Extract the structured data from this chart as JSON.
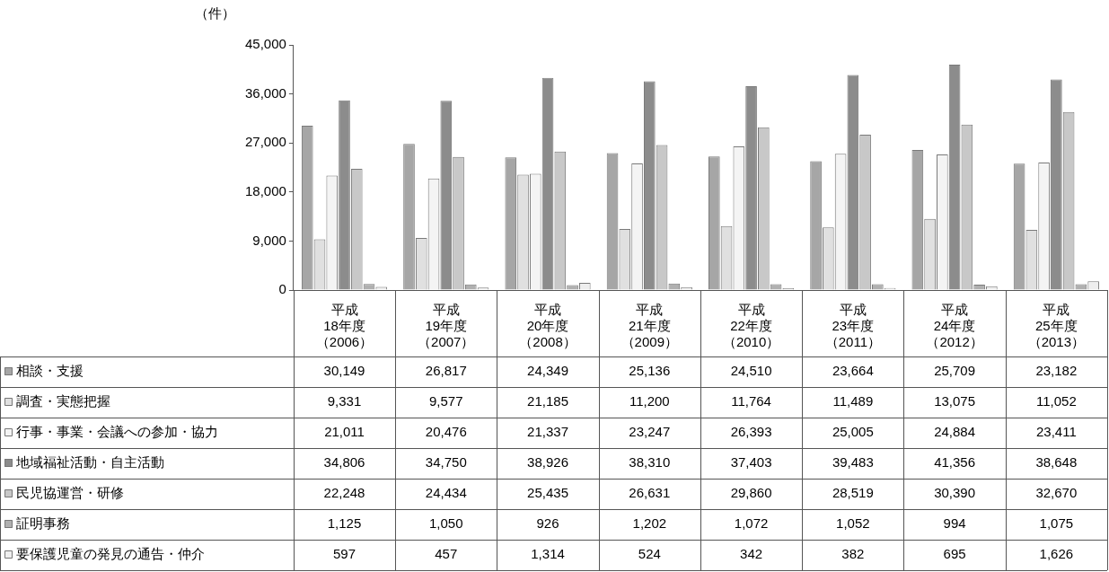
{
  "chart_data": {
    "type": "bar",
    "ylabel": "（件）",
    "categories": [
      "平成18年度（2006）",
      "平成19年度（2007）",
      "平成20年度（2008）",
      "平成21年度（2009）",
      "平成22年度（2010）",
      "平成23年度（2011）",
      "平成24年度（2012）",
      "平成25年度（2013）"
    ],
    "series": [
      {
        "name": "相談・支援",
        "color": "#a6a6a6",
        "values": [
          30149,
          26817,
          24349,
          25136,
          24510,
          23664,
          25709,
          23182
        ],
        "value_labels": [
          "30,149",
          "26,817",
          "24,349",
          "25,136",
          "24,510",
          "23,664",
          "25,709",
          "23,182"
        ]
      },
      {
        "name": "調査・実態把握",
        "color": "#e0e0e0",
        "values": [
          9331,
          9577,
          21185,
          11200,
          11764,
          11489,
          13075,
          11052
        ],
        "value_labels": [
          "9,331",
          "9,577",
          "21,185",
          "11,200",
          "11,764",
          "11,489",
          "13,075",
          "11,052"
        ]
      },
      {
        "name": "行事・事業・会議への参加・協力",
        "color": "#f4f4f4",
        "values": [
          21011,
          20476,
          21337,
          23247,
          26393,
          25005,
          24884,
          23411
        ],
        "value_labels": [
          "21,011",
          "20,476",
          "21,337",
          "23,247",
          "26,393",
          "25,005",
          "24,884",
          "23,411"
        ]
      },
      {
        "name": "地域福祉活動・自主活動",
        "color": "#8c8c8c",
        "values": [
          34806,
          34750,
          38926,
          38310,
          37403,
          39483,
          41356,
          38648
        ],
        "value_labels": [
          "34,806",
          "34,750",
          "38,926",
          "38,310",
          "37,403",
          "39,483",
          "41,356",
          "38,648"
        ]
      },
      {
        "name": "民児協運営・研修",
        "color": "#c8c8c8",
        "values": [
          22248,
          24434,
          25435,
          26631,
          29860,
          28519,
          30390,
          32670
        ],
        "value_labels": [
          "22,248",
          "24,434",
          "25,435",
          "26,631",
          "29,860",
          "28,519",
          "30,390",
          "32,670"
        ]
      },
      {
        "name": "証明事務",
        "color": "#b0b0b0",
        "values": [
          1125,
          1050,
          926,
          1202,
          1072,
          1052,
          994,
          1075
        ],
        "value_labels": [
          "1,125",
          "1,050",
          "926",
          "1,202",
          "1,072",
          "1,052",
          "994",
          "1,075"
        ]
      },
      {
        "name": "要保護児童の発見の通告・仲介",
        "color": "#eeeeee",
        "values": [
          597,
          457,
          1314,
          524,
          342,
          382,
          695,
          1626
        ],
        "value_labels": [
          "597",
          "457",
          "1,314",
          "524",
          "342",
          "382",
          "695",
          "1,626"
        ]
      }
    ],
    "ylim": [
      0,
      45000
    ],
    "yticks": [
      {
        "value": 0,
        "label": "0"
      },
      {
        "value": 9000,
        "label": "9,000"
      },
      {
        "value": 18000,
        "label": "18,000"
      },
      {
        "value": 27000,
        "label": "27,000"
      },
      {
        "value": 36000,
        "label": "36,000"
      },
      {
        "value": 45000,
        "label": "45,000"
      }
    ],
    "legend": "bottom"
  }
}
